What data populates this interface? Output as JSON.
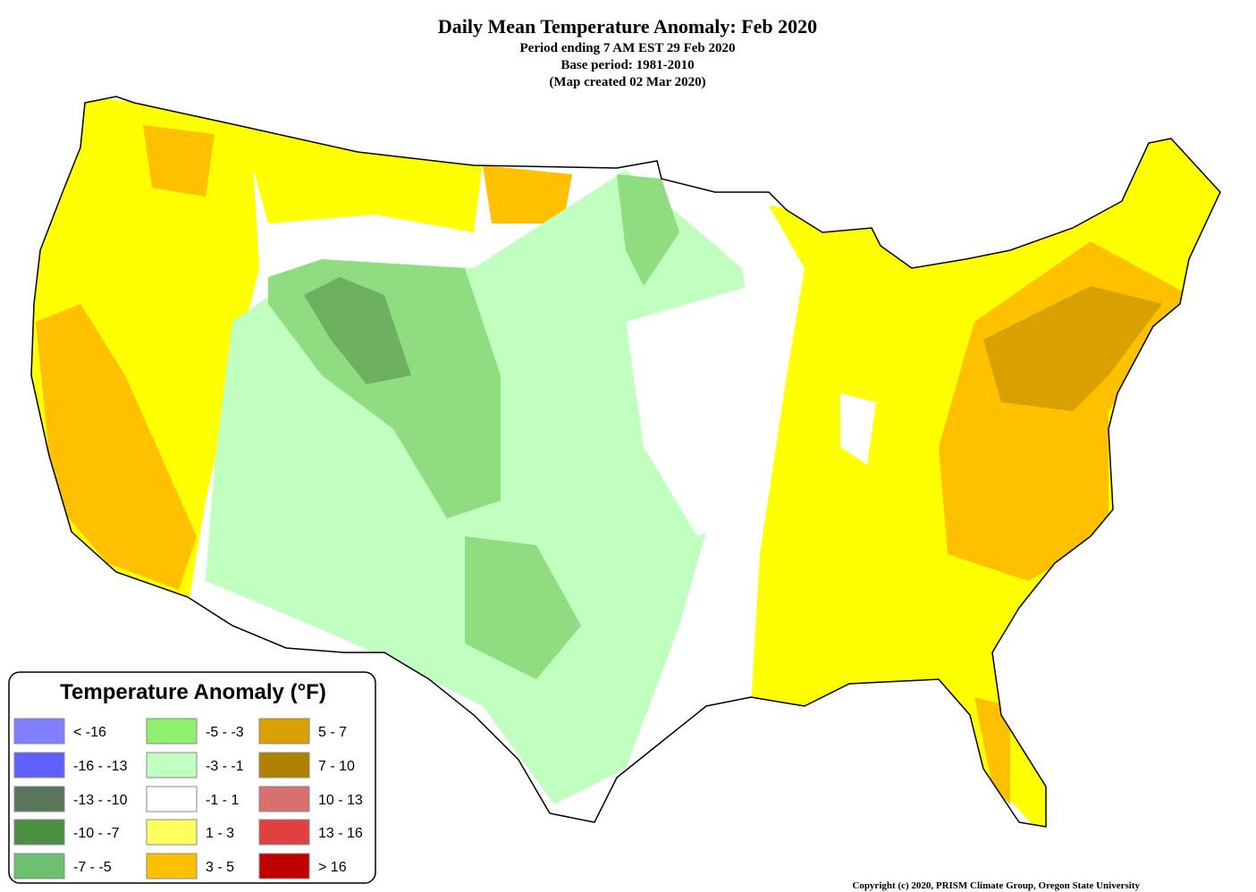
{
  "header": {
    "title": "Daily Mean Temperature Anomaly: Feb 2020",
    "lines": [
      "Period ending 7 AM EST 29 Feb 2020",
      "Base period: 1981-2010",
      "(Map created 02 Mar 2020)"
    ]
  },
  "legend": {
    "title": "Temperature Anomaly (°F)",
    "items": [
      {
        "label": "< -16",
        "color": "#8080ff"
      },
      {
        "label": "-16 - -13",
        "color": "#6060ff"
      },
      {
        "label": "-13 - -10",
        "color": "#5a765a"
      },
      {
        "label": "-10 - -7",
        "color": "#4a9040"
      },
      {
        "label": "-7 - -5",
        "color": "#6cc070"
      },
      {
        "label": "-5 - -3",
        "color": "#90f070"
      },
      {
        "label": "-3 - -1",
        "color": "#c0ffc0"
      },
      {
        "label": "-1 - 1",
        "color": "#ffffff"
      },
      {
        "label": "1 - 3",
        "color": "#ffff60"
      },
      {
        "label": "3 - 5",
        "color": "#ffc000"
      },
      {
        "label": "5 - 7",
        "color": "#d8a000"
      },
      {
        "label": "7 - 10",
        "color": "#b08000"
      },
      {
        "label": "10 - 13",
        "color": "#d87070"
      },
      {
        "label": "13 - 16",
        "color": "#e04040"
      },
      {
        "label": "> 16",
        "color": "#c00000"
      }
    ]
  },
  "copyright": "Copyright (c) 2020, PRISM Climate Group, Oregon State University"
}
